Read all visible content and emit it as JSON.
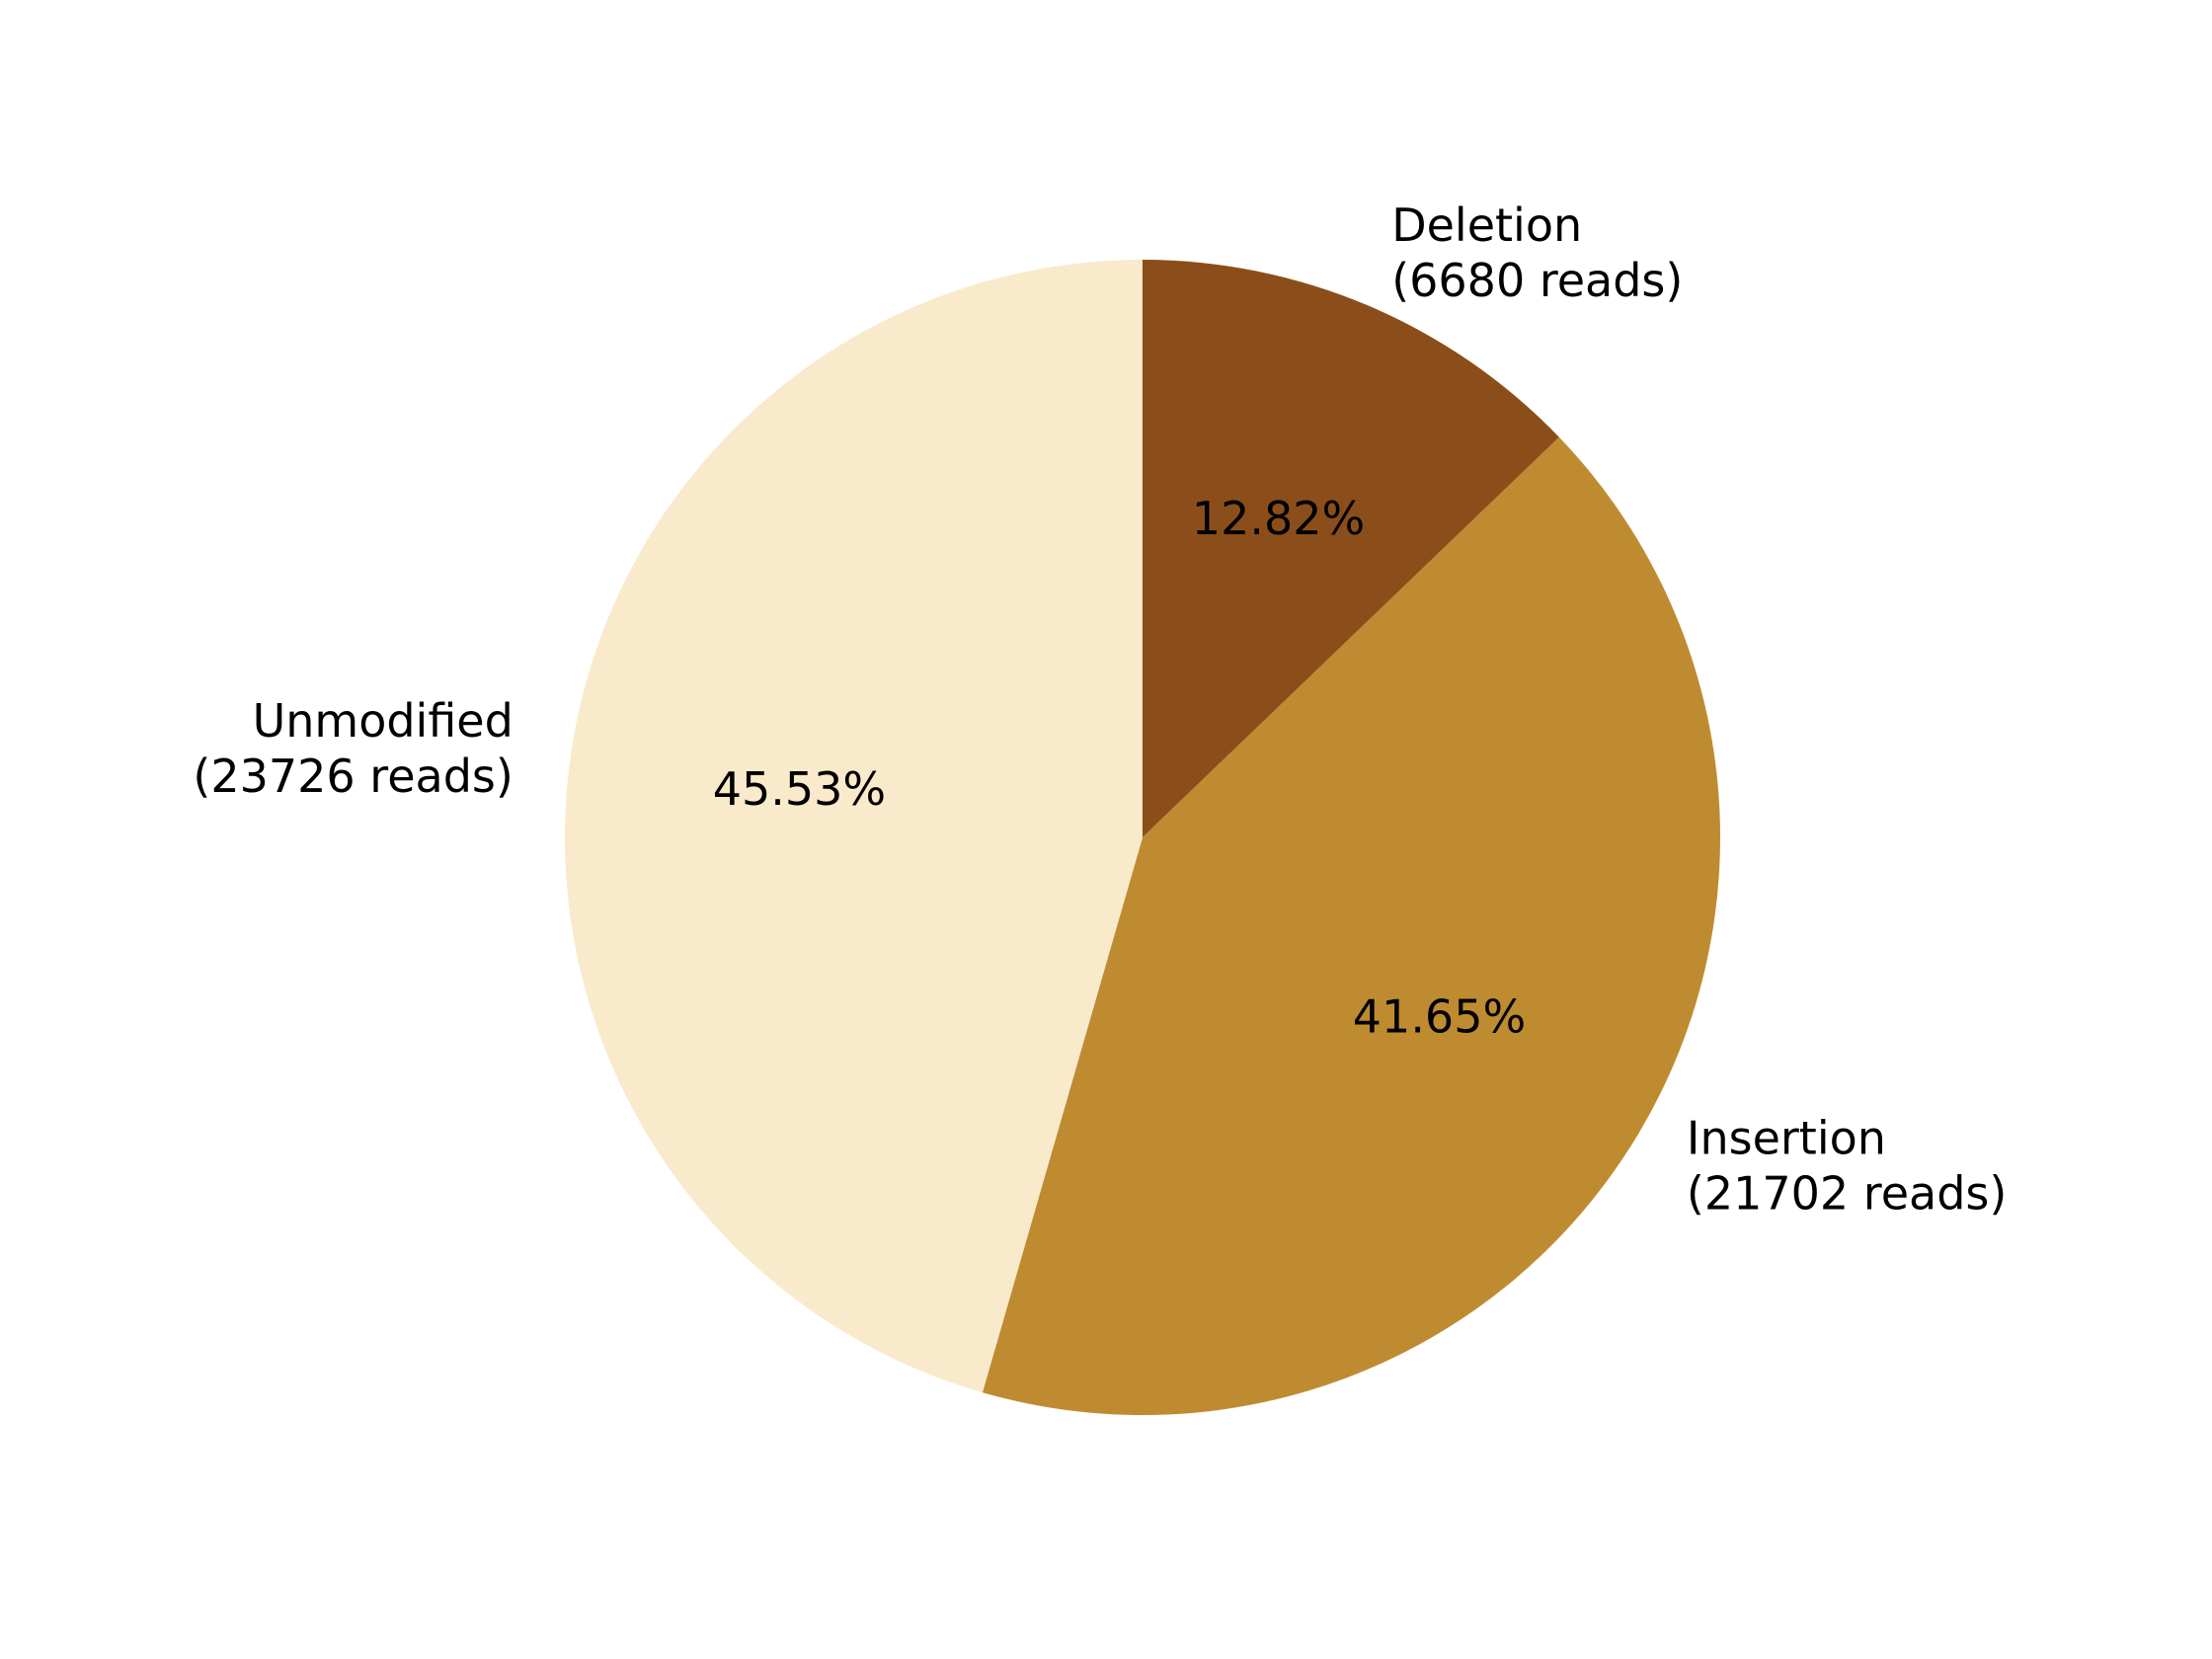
{
  "chart_data": {
    "type": "pie",
    "start_angle_deg": 90,
    "direction": "clockwise",
    "slices": [
      {
        "label": "Deletion",
        "reads_text": "(6680 reads)",
        "value": 6680,
        "percent_text": "12.82%",
        "color": "#8B4E1A"
      },
      {
        "label": "Insertion",
        "reads_text": "(21702 reads)",
        "value": 21702,
        "percent_text": "41.65%",
        "color": "#BF8B31"
      },
      {
        "label": "Unmodified",
        "reads_text": "(23726 reads)",
        "value": 23726,
        "percent_text": "45.53%",
        "color": "#F8EACB"
      }
    ]
  }
}
